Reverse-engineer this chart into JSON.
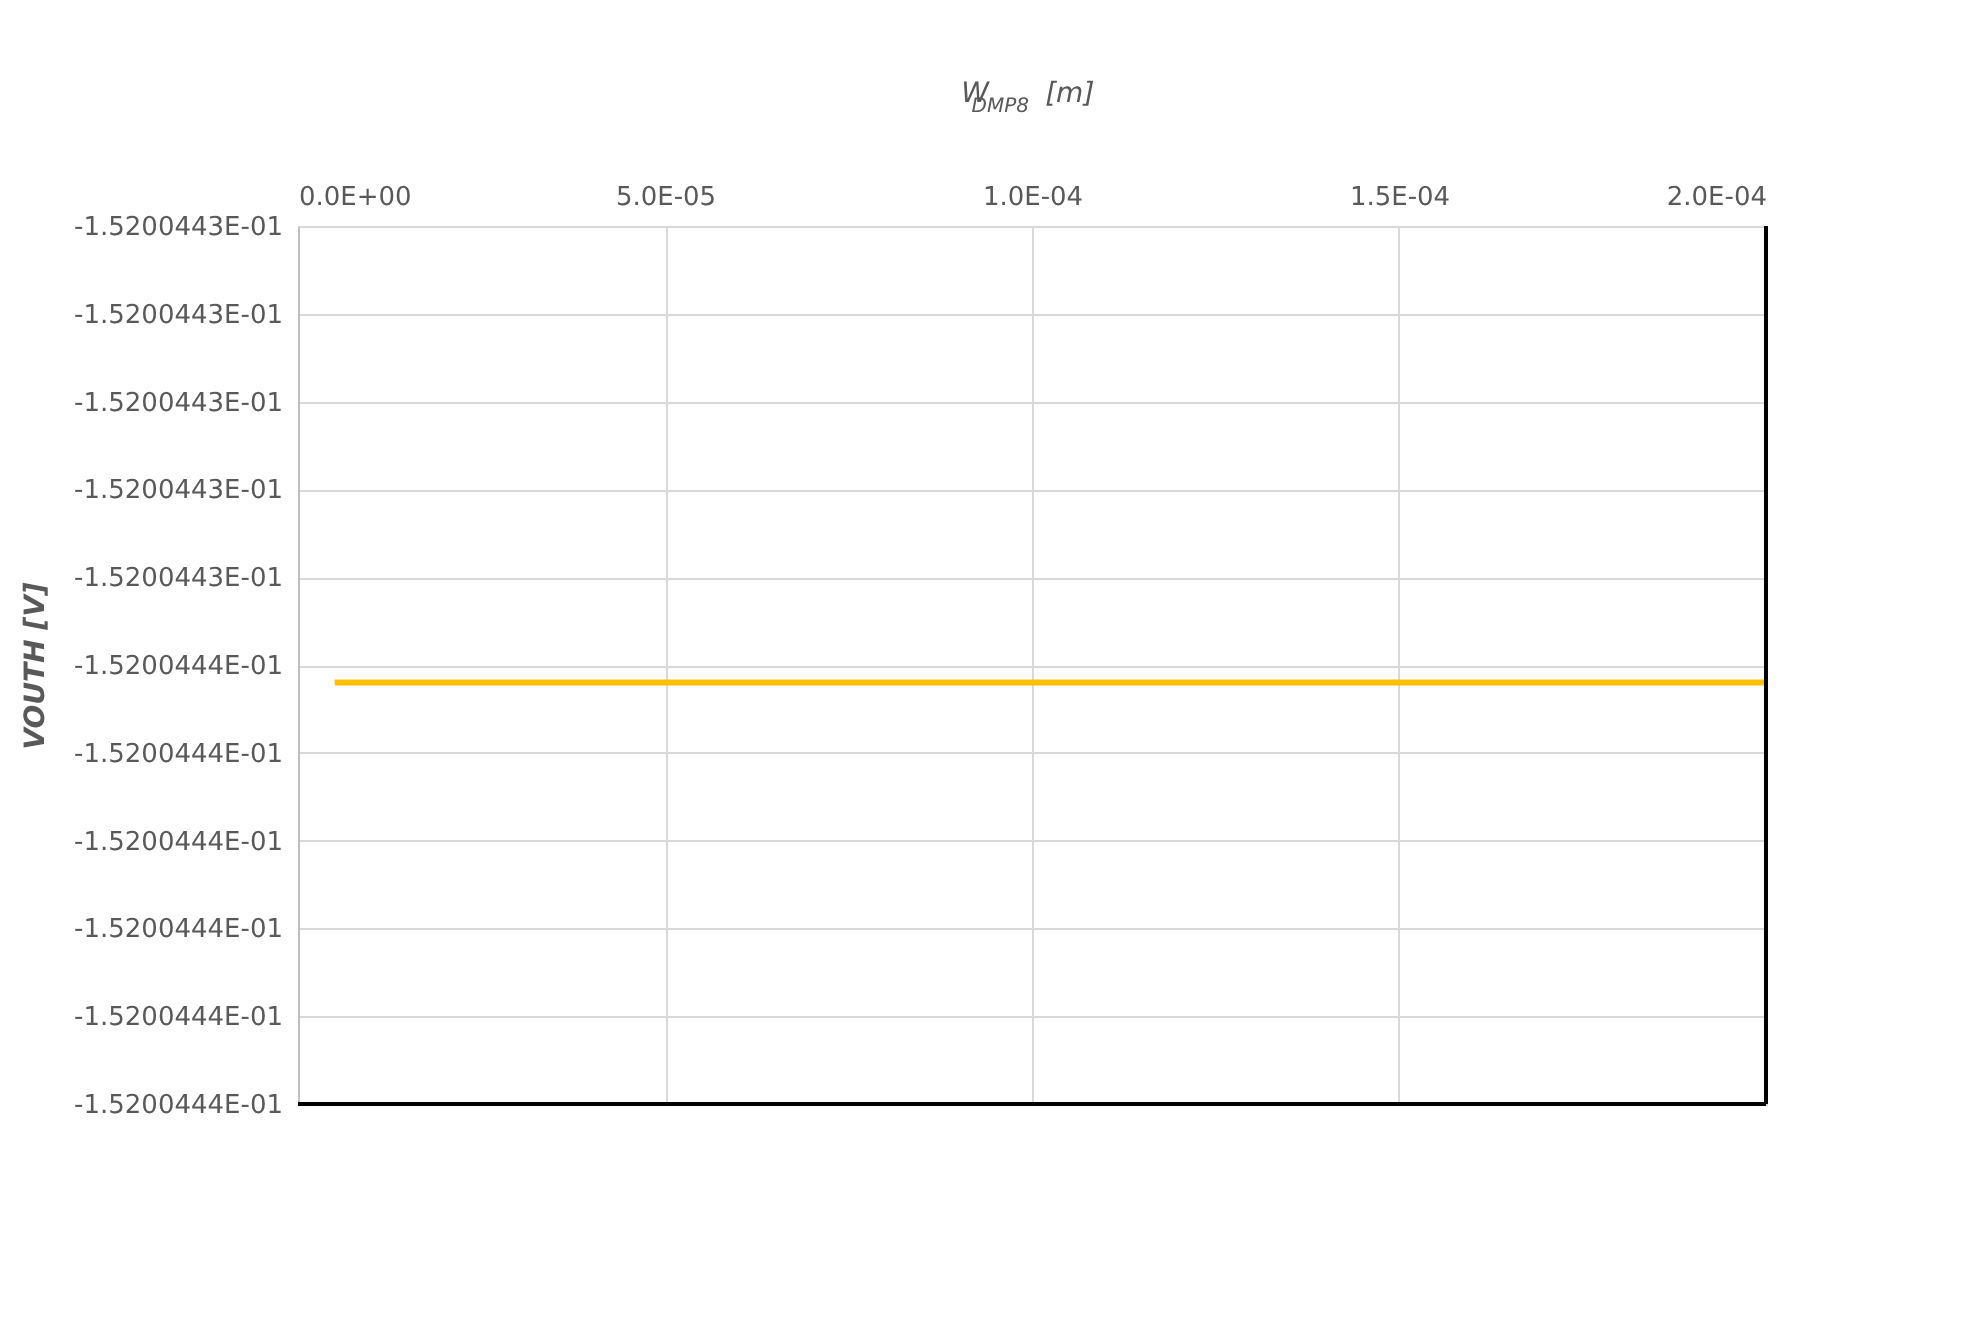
{
  "chart_data": {
    "type": "line",
    "xlabel": "W$_{DMP8}$ [m]",
    "ylabel": "VOUTH [V]",
    "x": [
      5e-06,
      0.0002
    ],
    "series": [
      {
        "color": "#ffc000",
        "values": [
          -0.1520044352,
          -0.1520044352
        ]
      }
    ],
    "xlim": [
      0,
      0.0002
    ],
    "xticks": [
      {
        "value": 0,
        "label": "0.0E+00"
      },
      {
        "value": 5e-05,
        "label": "5.0E-05"
      },
      {
        "value": 0.0001,
        "label": "1.0E-04"
      },
      {
        "value": 0.00015,
        "label": "1.5E-04"
      },
      {
        "value": 0.0002,
        "label": "2.0E-04"
      }
    ],
    "ylim": [
      -0.15200444,
      -0.15200443
    ],
    "yticks": [
      {
        "value": -0.15200443,
        "label": "-1.5200443E-01"
      },
      {
        "value": -0.152004431,
        "label": "-1.5200443E-01"
      },
      {
        "value": -0.152004432,
        "label": "-1.5200443E-01"
      },
      {
        "value": -0.152004433,
        "label": "-1.5200443E-01"
      },
      {
        "value": -0.152004434,
        "label": "-1.5200443E-01"
      },
      {
        "value": -0.152004435,
        "label": "-1.5200444E-01"
      },
      {
        "value": -0.152004436,
        "label": "-1.5200444E-01"
      },
      {
        "value": -0.152004437,
        "label": "-1.5200444E-01"
      },
      {
        "value": -0.152004438,
        "label": "-1.5200444E-01"
      },
      {
        "value": -0.152004439,
        "label": "-1.5200444E-01"
      },
      {
        "value": -0.15200444,
        "label": "-1.5200444E-01"
      }
    ],
    "grid": true,
    "marker": "none",
    "line_style": "solid"
  }
}
